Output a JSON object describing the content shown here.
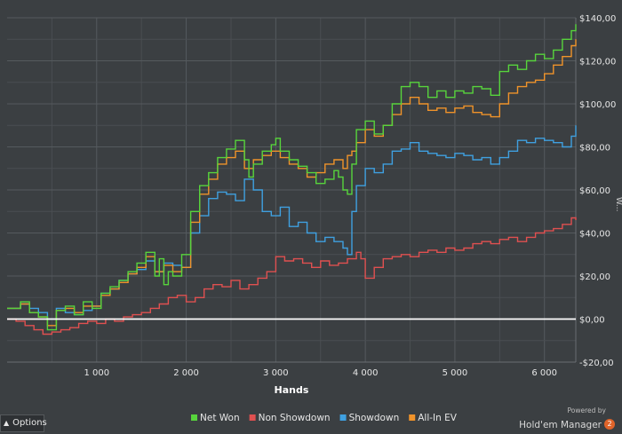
{
  "chart_data": {
    "type": "line",
    "title": "",
    "xlabel": "Hands",
    "ylabel": "",
    "xlim": [
      0,
      6350
    ],
    "ylim": [
      -20,
      140
    ],
    "x_ticks": [
      1000,
      2000,
      3000,
      4000,
      5000,
      6000
    ],
    "x_tick_labels": [
      "1 000",
      "2 000",
      "3 000",
      "4 000",
      "5 000",
      "6 000"
    ],
    "y_ticks": [
      -20,
      0,
      20,
      40,
      60,
      80,
      100,
      120,
      140
    ],
    "y_tick_labels": [
      "-$20,00",
      "$0,00",
      "$20,00",
      "$40,00",
      "$60,00",
      "$80,00",
      "$100,00",
      "$120,00",
      "$140,00"
    ],
    "grid": true,
    "legend_position": "bottom-right",
    "series": [
      {
        "name": "Net Won",
        "color": "#57d43c",
        "x": [
          0,
          150,
          250,
          350,
          450,
          550,
          650,
          750,
          850,
          950,
          1050,
          1150,
          1250,
          1350,
          1450,
          1550,
          1650,
          1700,
          1750,
          1800,
          1850,
          1950,
          2050,
          2150,
          2250,
          2350,
          2450,
          2550,
          2650,
          2700,
          2750,
          2850,
          2950,
          3000,
          3050,
          3150,
          3250,
          3350,
          3450,
          3550,
          3650,
          3700,
          3750,
          3800,
          3850,
          3900,
          4000,
          4100,
          4200,
          4300,
          4400,
          4500,
          4600,
          4700,
          4800,
          4900,
          5000,
          5100,
          5200,
          5300,
          5400,
          5500,
          5600,
          5700,
          5800,
          5900,
          6000,
          6100,
          6200,
          6300,
          6350
        ],
        "values": [
          5,
          8,
          3,
          1,
          -5,
          4,
          6,
          2,
          8,
          5,
          12,
          15,
          18,
          22,
          26,
          31,
          20,
          28,
          16,
          22,
          20,
          30,
          50,
          62,
          68,
          75,
          79,
          83,
          74,
          66,
          72,
          78,
          81,
          84,
          78,
          74,
          71,
          68,
          63,
          65,
          69,
          66,
          60,
          58,
          72,
          88,
          92,
          86,
          90,
          100,
          108,
          110,
          108,
          103,
          106,
          103,
          106,
          105,
          108,
          107,
          104,
          115,
          118,
          116,
          120,
          123,
          121,
          125,
          130,
          134,
          137
        ]
      },
      {
        "name": "Non Showdown",
        "color": "#e05050",
        "x": [
          0,
          100,
          200,
          300,
          400,
          500,
          600,
          700,
          800,
          900,
          1000,
          1100,
          1200,
          1300,
          1400,
          1500,
          1600,
          1700,
          1800,
          1900,
          2000,
          2100,
          2200,
          2300,
          2400,
          2500,
          2600,
          2700,
          2800,
          2900,
          3000,
          3100,
          3200,
          3300,
          3400,
          3500,
          3600,
          3700,
          3800,
          3900,
          3950,
          4000,
          4100,
          4200,
          4300,
          4400,
          4500,
          4600,
          4700,
          4800,
          4900,
          5000,
          5100,
          5200,
          5300,
          5400,
          5500,
          5600,
          5700,
          5800,
          5900,
          6000,
          6100,
          6200,
          6300,
          6350
        ],
        "values": [
          0,
          -1,
          -3,
          -5,
          -7,
          -6,
          -5,
          -4,
          -2,
          -1,
          -2,
          0,
          -1,
          1,
          2,
          3,
          5,
          7,
          10,
          11,
          8,
          10,
          14,
          16,
          15,
          18,
          14,
          16,
          19,
          22,
          29,
          27,
          28,
          26,
          24,
          27,
          25,
          26,
          28,
          31,
          28,
          19,
          24,
          28,
          29,
          30,
          29,
          31,
          32,
          31,
          33,
          32,
          33,
          35,
          36,
          35,
          37,
          38,
          36,
          38,
          40,
          41,
          42,
          44,
          47,
          46
        ]
      },
      {
        "name": "Showdown",
        "color": "#3fa0e0",
        "x": [
          0,
          150,
          250,
          350,
          450,
          550,
          650,
          750,
          850,
          950,
          1050,
          1150,
          1250,
          1350,
          1450,
          1550,
          1650,
          1750,
          1850,
          1950,
          2050,
          2150,
          2250,
          2350,
          2450,
          2550,
          2650,
          2750,
          2850,
          2950,
          3050,
          3150,
          3250,
          3350,
          3450,
          3550,
          3650,
          3750,
          3800,
          3850,
          3900,
          4000,
          4100,
          4200,
          4300,
          4400,
          4500,
          4600,
          4700,
          4800,
          4900,
          5000,
          5100,
          5200,
          5300,
          5400,
          5500,
          5600,
          5700,
          5800,
          5900,
          6000,
          6100,
          6200,
          6300,
          6350
        ],
        "values": [
          5,
          7,
          5,
          3,
          0,
          5,
          3,
          2,
          4,
          6,
          12,
          14,
          18,
          21,
          23,
          27,
          22,
          26,
          25,
          24,
          40,
          48,
          56,
          59,
          58,
          55,
          65,
          60,
          50,
          48,
          52,
          43,
          45,
          40,
          36,
          38,
          36,
          33,
          30,
          50,
          62,
          70,
          68,
          72,
          78,
          79,
          82,
          78,
          77,
          76,
          75,
          77,
          76,
          74,
          75,
          72,
          75,
          78,
          83,
          82,
          84,
          83,
          82,
          80,
          85,
          90
        ]
      },
      {
        "name": "All-In EV",
        "color": "#f0932a",
        "x": [
          0,
          150,
          250,
          350,
          450,
          550,
          650,
          750,
          850,
          950,
          1050,
          1150,
          1250,
          1350,
          1450,
          1550,
          1650,
          1750,
          1850,
          1950,
          2050,
          2150,
          2250,
          2350,
          2450,
          2550,
          2650,
          2750,
          2850,
          2950,
          3050,
          3150,
          3250,
          3350,
          3450,
          3550,
          3650,
          3750,
          3800,
          3850,
          3900,
          4000,
          4100,
          4200,
          4300,
          4400,
          4500,
          4600,
          4700,
          4800,
          4900,
          5000,
          5100,
          5200,
          5300,
          5400,
          5500,
          5600,
          5700,
          5800,
          5900,
          6000,
          6100,
          6200,
          6300,
          6350
        ],
        "values": [
          5,
          7,
          3,
          1,
          -3,
          4,
          5,
          3,
          6,
          6,
          11,
          14,
          17,
          21,
          24,
          29,
          22,
          25,
          22,
          24,
          45,
          58,
          65,
          72,
          75,
          78,
          70,
          74,
          76,
          78,
          75,
          72,
          70,
          66,
          68,
          72,
          74,
          70,
          76,
          78,
          82,
          88,
          85,
          90,
          95,
          100,
          103,
          100,
          97,
          98,
          96,
          98,
          99,
          96,
          95,
          94,
          100,
          105,
          108,
          110,
          111,
          114,
          118,
          122,
          127,
          130
        ]
      }
    ],
    "reference_line": {
      "y": 0,
      "color": "#ffffff"
    }
  },
  "ui": {
    "options_label": "Options",
    "powered_by": "Powered by",
    "brand_name": "Hold'em Manager",
    "brand_badge": "2",
    "y_axis_side_label": "W..."
  }
}
